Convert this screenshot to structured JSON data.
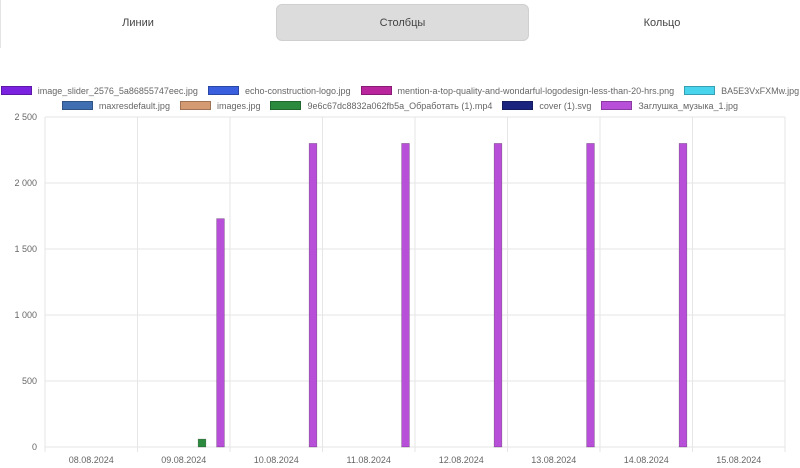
{
  "tabs": [
    {
      "label": "Линии",
      "active": false
    },
    {
      "label": "Столбцы",
      "active": true
    },
    {
      "label": "Кольцо",
      "active": false
    }
  ],
  "legend_rows": [
    [
      {
        "label": "image_slider_2576_5a86855747eec.jpg",
        "color": "#7b22e0"
      },
      {
        "label": "echo-construction-logo.jpg",
        "color": "#3a5fde"
      },
      {
        "label": "mention-a-top-quality-and-wondarful-logodesign-less-than-20-hrs.png",
        "color": "#b8259c"
      },
      {
        "label": "BA5E3VxFXMw.jpg",
        "color": "#48d4ec"
      }
    ],
    [
      {
        "label": "maxresdefault.jpg",
        "color": "#3f6fb0"
      },
      {
        "label": "images.jpg",
        "color": "#d49a72"
      },
      {
        "label": "9e6c67dc8832a062fb5a_Обработать (1).mp4",
        "color": "#2b8a3e"
      },
      {
        "label": "cover (1).svg",
        "color": "#1a237e"
      },
      {
        "label": "Заглушка_музыка_1.jpg",
        "color": "#b84fd8"
      }
    ]
  ],
  "chart_data": {
    "type": "bar",
    "categories": [
      "08.08.2024",
      "09.08.2024",
      "10.08.2024",
      "11.08.2024",
      "12.08.2024",
      "13.08.2024",
      "14.08.2024",
      "15.08.2024"
    ],
    "ylim": [
      0,
      2500
    ],
    "yticks": [
      0,
      500,
      1000,
      1500,
      2000,
      2500
    ],
    "ytick_labels": [
      "0",
      "500",
      "1 000",
      "1 500",
      "2 000",
      "2 500"
    ],
    "grid": true,
    "legend_position": "top",
    "series": [
      {
        "name": "image_slider_2576_5a86855747eec.jpg",
        "color": "#7b22e0",
        "values": [
          0,
          0,
          0,
          0,
          0,
          0,
          0,
          0
        ]
      },
      {
        "name": "echo-construction-logo.jpg",
        "color": "#3a5fde",
        "values": [
          0,
          0,
          0,
          0,
          0,
          0,
          0,
          0
        ]
      },
      {
        "name": "mention-a-top-quality-and-wondarful-logodesign-less-than-20-hrs.png",
        "color": "#b8259c",
        "values": [
          0,
          0,
          0,
          0,
          0,
          0,
          0,
          0
        ]
      },
      {
        "name": "BA5E3VxFXMw.jpg",
        "color": "#48d4ec",
        "values": [
          0,
          0,
          0,
          0,
          0,
          0,
          0,
          0
        ]
      },
      {
        "name": "maxresdefault.jpg",
        "color": "#3f6fb0",
        "values": [
          0,
          0,
          0,
          0,
          0,
          0,
          0,
          0
        ]
      },
      {
        "name": "images.jpg",
        "color": "#d49a72",
        "values": [
          0,
          0,
          0,
          0,
          0,
          0,
          0,
          0
        ]
      },
      {
        "name": "9e6c67dc8832a062fb5a_Обработать (1).mp4",
        "color": "#2b8a3e",
        "values": [
          0,
          60,
          0,
          0,
          0,
          0,
          0,
          0
        ]
      },
      {
        "name": "cover (1).svg",
        "color": "#1a237e",
        "values": [
          0,
          0,
          0,
          0,
          0,
          0,
          0,
          0
        ]
      },
      {
        "name": "Заглушка_музыка_1.jpg",
        "color": "#b84fd8",
        "values": [
          0,
          1730,
          2300,
          2300,
          2300,
          2300,
          2300,
          0
        ]
      }
    ]
  }
}
